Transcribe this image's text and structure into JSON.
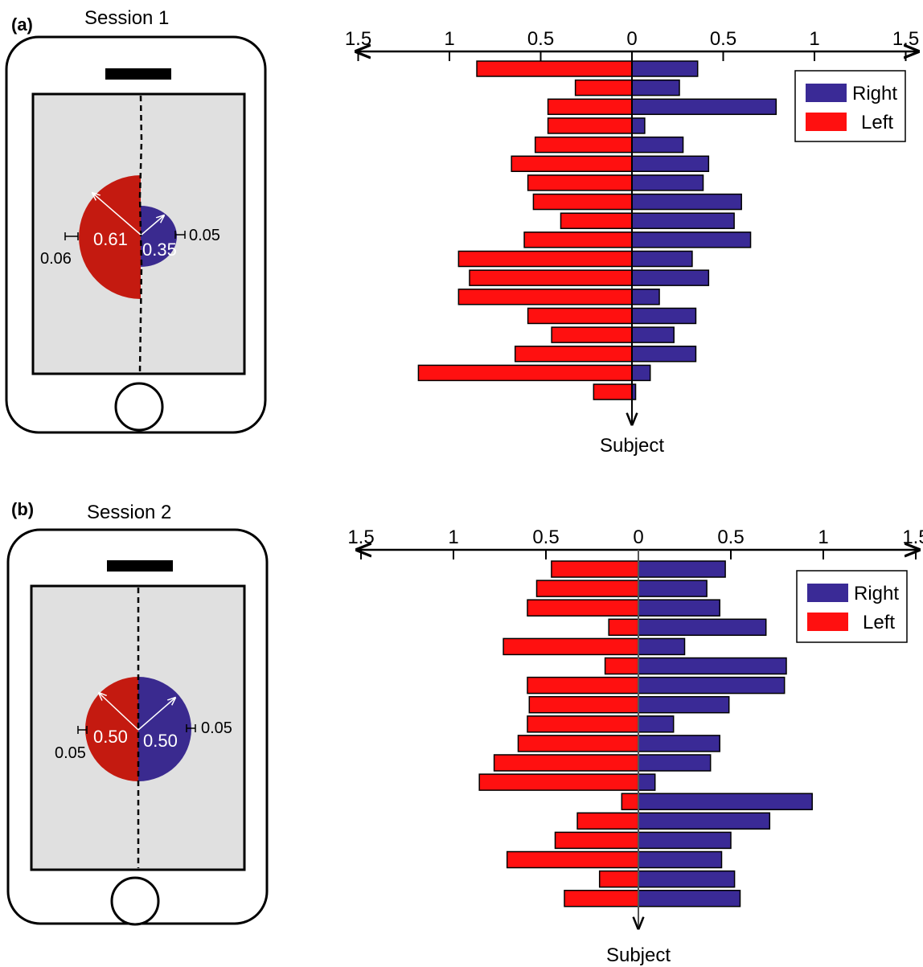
{
  "colors": {
    "right_bar": "#3a2a96",
    "left_bar": "#ff1010",
    "right_dot": "#3a2a8f",
    "left_dot": "#c41a10",
    "screen_bg": "#e0e0e0"
  },
  "panels": [
    {
      "letter": "(a)",
      "session_title": "Session 1",
      "phone": {
        "left_value": "0.61",
        "right_value": "0.35",
        "left_error": "0.06",
        "right_error": "0.05",
        "left_radius_value": 0.61,
        "right_radius_value": 0.35
      }
    },
    {
      "letter": "(b)",
      "session_title": "Session 2",
      "phone": {
        "left_value": "0.50",
        "right_value": "0.50",
        "left_error": "0.05",
        "right_error": "0.05",
        "left_radius_value": 0.5,
        "right_radius_value": 0.5
      }
    }
  ],
  "chart_data": [
    {
      "type": "bar",
      "orientation": "horizontal-back-to-back",
      "title": "",
      "x_tick_labels": [
        "1.5",
        "1",
        "0.5",
        "0",
        "0.5",
        "1",
        "1.5"
      ],
      "x_tick_values": [
        -1.5,
        -1,
        -0.5,
        0,
        0.5,
        1,
        1.5
      ],
      "xlim": [
        -1.5,
        1.5
      ],
      "ylabel": "Subject",
      "legend": {
        "position": "top-right",
        "entries": [
          "Right",
          "Left"
        ]
      },
      "grid": false,
      "series": [
        {
          "name": "Right",
          "values": [
            0.36,
            0.26,
            0.79,
            0.07,
            0.28,
            0.42,
            0.39,
            0.6,
            0.56,
            0.65,
            0.33,
            0.42,
            0.15,
            0.35,
            0.23,
            0.35,
            0.1,
            0.02
          ]
        },
        {
          "name": "Left",
          "values": [
            0.85,
            0.31,
            0.46,
            0.46,
            0.53,
            0.66,
            0.57,
            0.54,
            0.39,
            0.59,
            0.95,
            0.89,
            0.95,
            0.57,
            0.44,
            0.64,
            1.17,
            0.21
          ]
        }
      ]
    },
    {
      "type": "bar",
      "orientation": "horizontal-back-to-back",
      "title": "",
      "x_tick_labels": [
        "1.5",
        "1",
        "0.5",
        "0",
        "0.5",
        "1",
        "1.5"
      ],
      "x_tick_values": [
        -1.5,
        -1,
        -0.5,
        0,
        0.5,
        1,
        1.5
      ],
      "xlim": [
        -1.5,
        1.5
      ],
      "ylabel": "Subject",
      "legend": {
        "position": "top-right",
        "entries": [
          "Right",
          "Left"
        ]
      },
      "grid": false,
      "series": [
        {
          "name": "Right",
          "values": [
            0.47,
            0.37,
            0.44,
            0.69,
            0.25,
            0.8,
            0.79,
            0.49,
            0.19,
            0.44,
            0.39,
            0.09,
            0.94,
            0.71,
            0.5,
            0.45,
            0.52,
            0.55
          ]
        },
        {
          "name": "Left",
          "values": [
            0.47,
            0.55,
            0.6,
            0.16,
            0.73,
            0.18,
            0.6,
            0.59,
            0.6,
            0.65,
            0.78,
            0.86,
            0.09,
            0.33,
            0.45,
            0.71,
            0.21,
            0.4
          ]
        }
      ]
    }
  ]
}
